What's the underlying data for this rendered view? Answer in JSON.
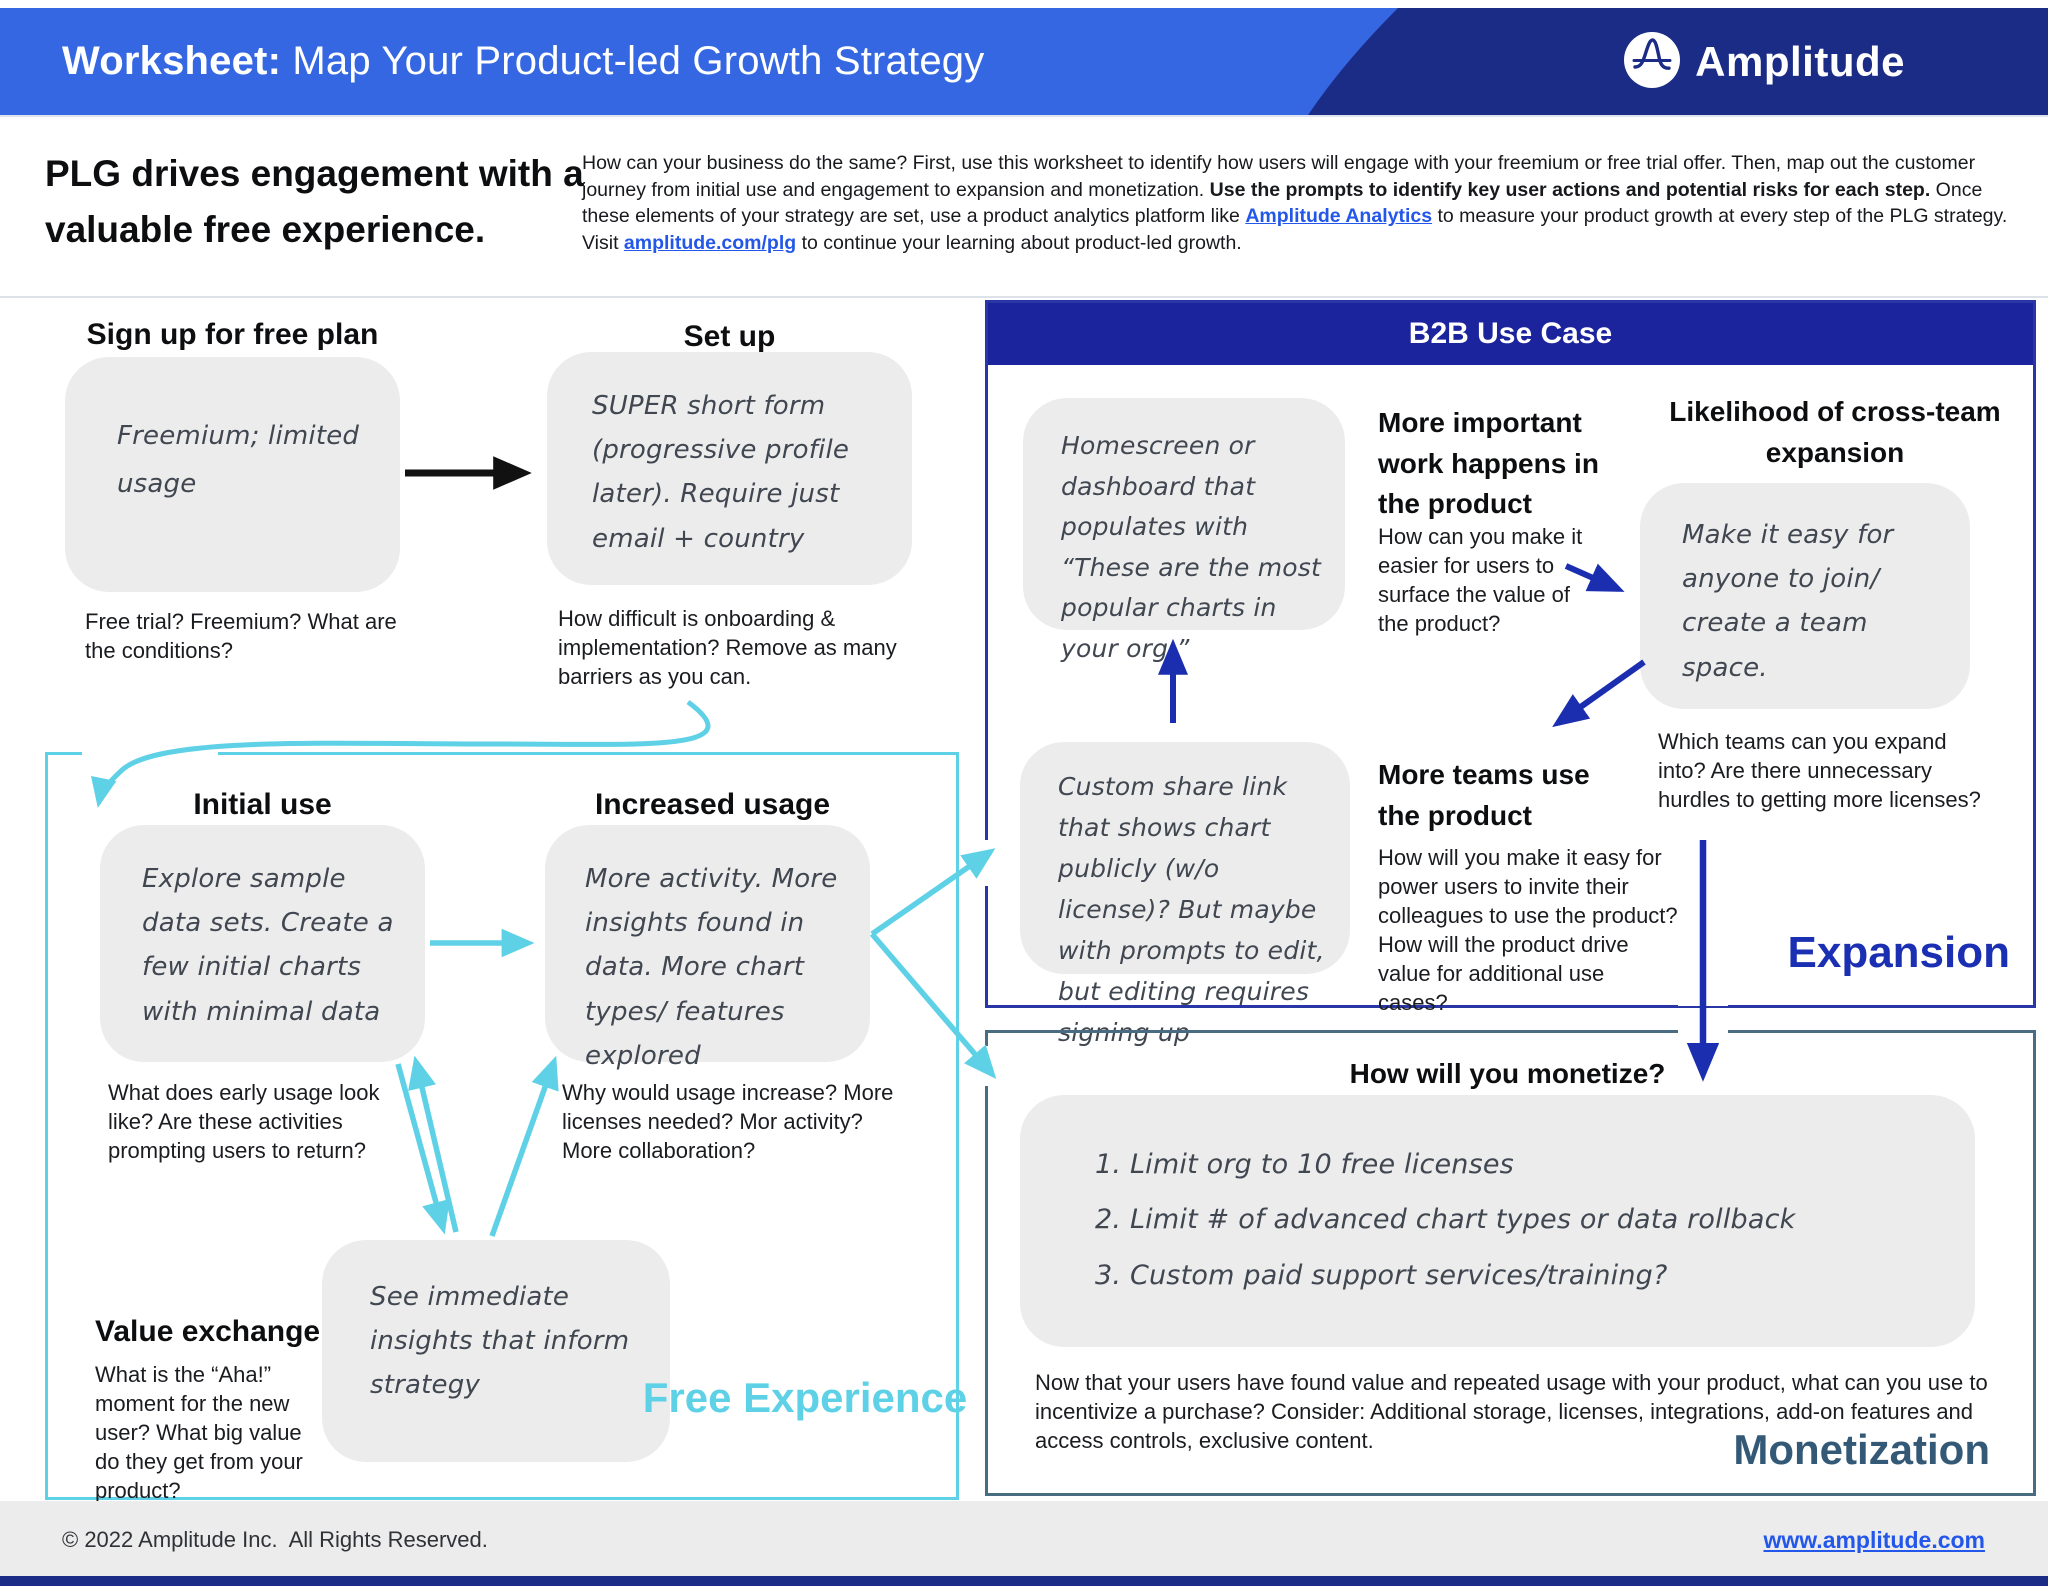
{
  "colors": {
    "header_blue": "#3567E2",
    "header_navy": "#1A2C86",
    "b2b_navy": "#1B249C",
    "b2b_border": "#2836A6",
    "teal": "#5ED1E6",
    "navy_arrow": "#1B2EB0",
    "slate_border": "#4A6C82",
    "monetization_text": "#335977",
    "expansion_text": "#1B2FB3",
    "note_gray": "#ECECEC",
    "link_blue": "#2357E9"
  },
  "header": {
    "title_prefix": "Worksheet:",
    "title_rest": " Map Your Product-led Growth Strategy",
    "logo_text": "Amplitude"
  },
  "intro": {
    "heading": "PLG drives engagement with a valuable free experience.",
    "segments": [
      {
        "t": "How can your business do the same? First, use this worksheet to identify how users will engage with your freemium or free trial offer. Then, map out the customer journey from initial use and engagement to expansion and monetization. "
      },
      {
        "t": "Use the prompts to identify key user actions and potential risks for each step.",
        "b": true
      },
      {
        "t": " Once these elements of your strategy are set, use a product analytics platform like "
      },
      {
        "t": "Amplitude Analytics",
        "link": true
      },
      {
        "t": " to measure your product growth at every step of the PLG strategy. Visit "
      },
      {
        "t": "amplitude.com/plg",
        "link": true
      },
      {
        "t": " to continue your learning about product-led growth."
      }
    ]
  },
  "signup": {
    "label": "Sign up for free plan",
    "note": "Freemium; limited usage",
    "caption": "Free trial? Freemium? What are the conditions?"
  },
  "setup": {
    "label": "Set up",
    "note": "SUPER short form (progressive profile later). Require just email + country",
    "caption": "How difficult is onboarding & implementation? Remove as many barriers as you can."
  },
  "free_experience": {
    "section_label": "Free Experience",
    "initial_use": {
      "label": "Initial use",
      "note": "Explore sample data sets. Create a few initial charts with minimal data",
      "caption": "What does early usage look like? Are these activities prompting users to return?"
    },
    "increased_usage": {
      "label": "Increased usage",
      "note": "More activity. More insights found in data. More chart types/ features explored",
      "caption": "Why would usage increase? More licenses needed? Mor activity? More collaboration?"
    },
    "value_exchange": {
      "label": "Value exchange",
      "caption": "What is the “Aha!” moment for the new user? What big value do they get from your product?",
      "note": "See immediate insights that inform strategy"
    }
  },
  "b2b": {
    "header": "B2B Use Case",
    "section_label": "Expansion",
    "homescreen_note": "Homescreen or dashboard that populates with “These are the most popular charts in your org.”",
    "more_important": {
      "heading": "More important work happens in the product",
      "caption": "How can you make it easier for users to surface the value of the product?"
    },
    "likelihood": {
      "heading": "Likelihood of cross-team expansion",
      "note": "Make it easy for anyone to join/ create a team space.",
      "caption": "Which teams can you expand into? Are there unnecessary hurdles to getting more licenses?"
    },
    "share_note": "Custom share link that shows chart publicly (w/o license)?  But maybe with prompts to edit, but editing requires signing up",
    "more_teams": {
      "heading": "More teams use the product",
      "caption": "How will you make it easy for power users to invite their colleagues to use the product? How will the product drive value for additional use cases?"
    }
  },
  "monetization": {
    "heading": "How will you monetize?",
    "section_label": "Monetization",
    "box_items": [
      "1. Limit org to 10 free licenses",
      "2. Limit # of advanced chart types or data rollback",
      "3. Custom paid support services/training?"
    ],
    "caption": "Now that your users have found value and repeated usage with your product, what can you use to incentivize a purchase? Consider: Additional storage, licenses, integrations, add-on features and access controls, exclusive content."
  },
  "footer": {
    "copyright": "© 2022 Amplitude Inc.  All Rights Reserved.",
    "website": "www.amplitude.com"
  }
}
